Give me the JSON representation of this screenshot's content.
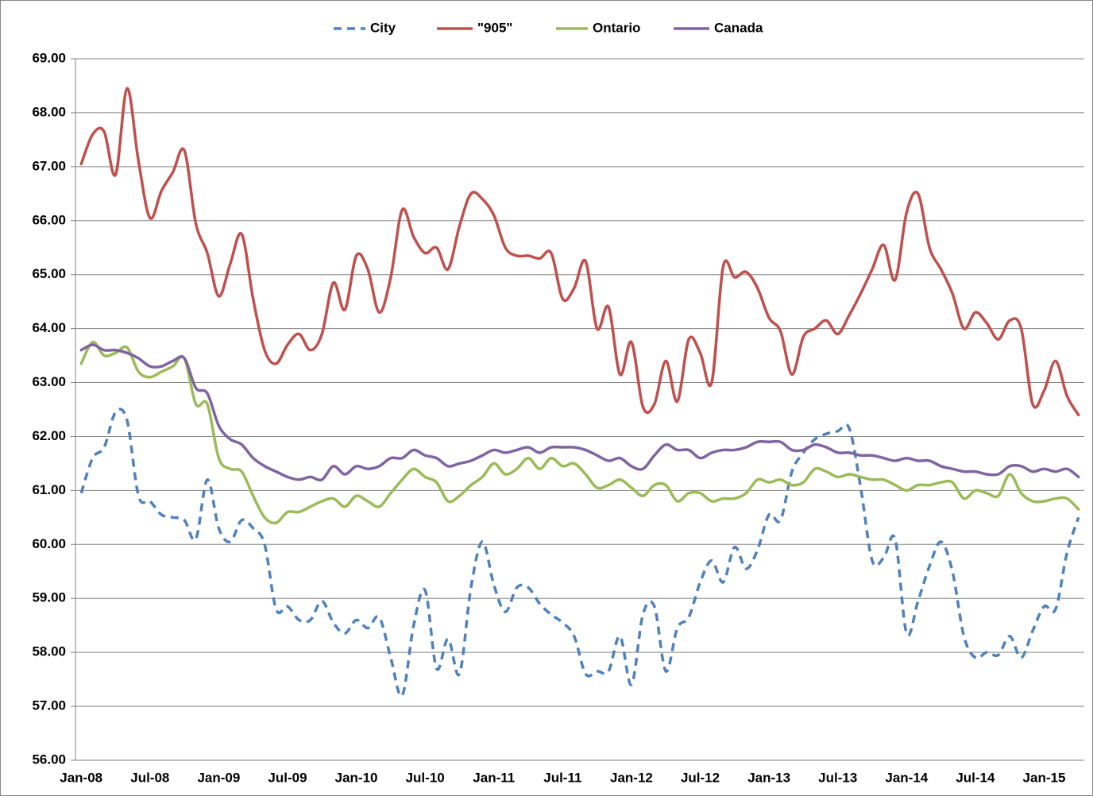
{
  "chart_data": {
    "type": "line",
    "categories": [
      "Jan-08",
      null,
      null,
      null,
      null,
      null,
      "Jul-08",
      null,
      null,
      null,
      null,
      null,
      "Jan-09",
      null,
      null,
      null,
      null,
      null,
      "Jul-09",
      null,
      null,
      null,
      null,
      null,
      "Jan-10",
      null,
      null,
      null,
      null,
      null,
      "Jul-10",
      null,
      null,
      null,
      null,
      null,
      "Jan-11",
      null,
      null,
      null,
      null,
      null,
      "Jul-11",
      null,
      null,
      null,
      null,
      null,
      "Jan-12",
      null,
      null,
      null,
      null,
      null,
      "Jul-12",
      null,
      null,
      null,
      null,
      null,
      "Jan-13",
      null,
      null,
      null,
      null,
      null,
      "Jul-13",
      null,
      null,
      null,
      null,
      null,
      "Jan-14",
      null,
      null,
      null,
      null,
      null,
      "Jul-14",
      null,
      null,
      null,
      null,
      null,
      "Jan-15",
      null,
      null,
      null
    ],
    "series": [
      {
        "name": "City",
        "color": "#4f81bd",
        "dashed": true,
        "values": [
          60.95,
          61.6,
          61.8,
          62.45,
          62.3,
          60.9,
          60.8,
          60.55,
          60.5,
          60.45,
          60.1,
          61.2,
          60.3,
          60.05,
          60.45,
          60.3,
          60.0,
          58.8,
          58.85,
          58.6,
          58.6,
          58.95,
          58.55,
          58.35,
          58.6,
          58.45,
          58.65,
          57.9,
          57.2,
          58.5,
          59.15,
          57.7,
          58.25,
          57.6,
          59.2,
          60.05,
          59.25,
          58.75,
          59.2,
          59.2,
          58.9,
          58.7,
          58.55,
          58.3,
          57.6,
          57.65,
          57.65,
          58.3,
          57.4,
          58.7,
          58.85,
          57.65,
          58.45,
          58.65,
          59.3,
          59.7,
          59.3,
          59.95,
          59.55,
          59.9,
          60.55,
          60.45,
          61.35,
          61.7,
          61.95,
          62.05,
          62.1,
          62.15,
          61.05,
          59.7,
          59.75,
          60.1,
          58.35,
          58.95,
          59.6,
          60.05,
          59.5,
          58.3,
          57.9,
          58.0,
          57.95,
          58.3,
          57.9,
          58.4,
          58.85,
          58.8,
          59.85,
          60.5
        ]
      },
      {
        "name": "\"905\"",
        "color": "#c0504d",
        "dashed": false,
        "values": [
          67.05,
          67.6,
          67.65,
          66.85,
          68.45,
          67.1,
          66.05,
          66.55,
          66.9,
          67.3,
          65.95,
          65.4,
          64.6,
          65.2,
          65.75,
          64.55,
          63.6,
          63.35,
          63.7,
          63.9,
          63.6,
          63.9,
          64.85,
          64.35,
          65.35,
          65.1,
          64.3,
          64.95,
          66.2,
          65.7,
          65.4,
          65.5,
          65.1,
          65.9,
          66.5,
          66.4,
          66.1,
          65.5,
          65.35,
          65.35,
          65.3,
          65.4,
          64.55,
          64.75,
          65.25,
          64.0,
          64.4,
          63.15,
          63.75,
          62.55,
          62.6,
          63.4,
          62.65,
          63.8,
          63.55,
          63.0,
          65.15,
          64.95,
          65.05,
          64.75,
          64.2,
          63.95,
          63.15,
          63.85,
          64.0,
          64.15,
          63.9,
          64.25,
          64.65,
          65.1,
          65.55,
          64.9,
          66.15,
          66.5,
          65.5,
          65.1,
          64.65,
          64.0,
          64.3,
          64.1,
          63.8,
          64.15,
          64.0,
          62.6,
          62.85,
          63.4,
          62.75,
          62.4
        ]
      },
      {
        "name": "Ontario",
        "color": "#9bbb59",
        "dashed": false,
        "values": [
          63.35,
          63.75,
          63.5,
          63.55,
          63.65,
          63.2,
          63.1,
          63.2,
          63.3,
          63.45,
          62.6,
          62.6,
          61.6,
          61.4,
          61.35,
          60.9,
          60.5,
          60.4,
          60.6,
          60.6,
          60.7,
          60.8,
          60.85,
          60.7,
          60.9,
          60.8,
          60.7,
          60.95,
          61.2,
          61.4,
          61.25,
          61.15,
          60.8,
          60.9,
          61.1,
          61.25,
          61.5,
          61.3,
          61.4,
          61.6,
          61.4,
          61.6,
          61.45,
          61.5,
          61.3,
          61.05,
          61.1,
          61.2,
          61.05,
          60.9,
          61.1,
          61.1,
          60.8,
          60.95,
          60.95,
          60.8,
          60.85,
          60.85,
          60.95,
          61.2,
          61.15,
          61.2,
          61.1,
          61.15,
          61.4,
          61.35,
          61.25,
          61.3,
          61.25,
          61.2,
          61.2,
          61.1,
          61.0,
          61.1,
          61.1,
          61.15,
          61.15,
          60.85,
          61.0,
          60.95,
          60.9,
          61.3,
          60.95,
          60.8,
          60.8,
          60.85,
          60.85,
          60.65
        ]
      },
      {
        "name": "Canada",
        "color": "#8064a2",
        "dashed": false,
        "values": [
          63.6,
          63.7,
          63.6,
          63.6,
          63.55,
          63.45,
          63.3,
          63.3,
          63.4,
          63.45,
          62.9,
          62.8,
          62.2,
          61.95,
          61.85,
          61.6,
          61.45,
          61.35,
          61.25,
          61.2,
          61.25,
          61.2,
          61.45,
          61.3,
          61.45,
          61.4,
          61.45,
          61.6,
          61.6,
          61.75,
          61.65,
          61.6,
          61.45,
          61.5,
          61.55,
          61.65,
          61.75,
          61.7,
          61.75,
          61.8,
          61.7,
          61.8,
          61.8,
          61.8,
          61.75,
          61.65,
          61.55,
          61.6,
          61.45,
          61.4,
          61.65,
          61.85,
          61.75,
          61.75,
          61.6,
          61.7,
          61.75,
          61.75,
          61.8,
          61.9,
          61.9,
          61.9,
          61.75,
          61.75,
          61.85,
          61.8,
          61.7,
          61.7,
          61.65,
          61.65,
          61.6,
          61.55,
          61.6,
          61.55,
          61.55,
          61.45,
          61.4,
          61.35,
          61.35,
          61.3,
          61.3,
          61.45,
          61.45,
          61.35,
          61.4,
          61.35,
          61.4,
          61.25
        ]
      }
    ],
    "ylim": [
      56,
      69
    ],
    "yticks": [
      {
        "value": 56,
        "label": "56.00"
      },
      {
        "value": 57,
        "label": "57.00"
      },
      {
        "value": 58,
        "label": "58.00"
      },
      {
        "value": 59,
        "label": "59.00"
      },
      {
        "value": 60,
        "label": "60.00"
      },
      {
        "value": 61,
        "label": "61.00"
      },
      {
        "value": 62,
        "label": "62.00"
      },
      {
        "value": 63,
        "label": "63.00"
      },
      {
        "value": 64,
        "label": "64.00"
      },
      {
        "value": 65,
        "label": "65.00"
      },
      {
        "value": 66,
        "label": "66.00"
      },
      {
        "value": 67,
        "label": "67.00"
      },
      {
        "value": 68,
        "label": "68.00"
      },
      {
        "value": 69,
        "label": "69.00"
      }
    ],
    "grid": true,
    "legend": "top"
  }
}
